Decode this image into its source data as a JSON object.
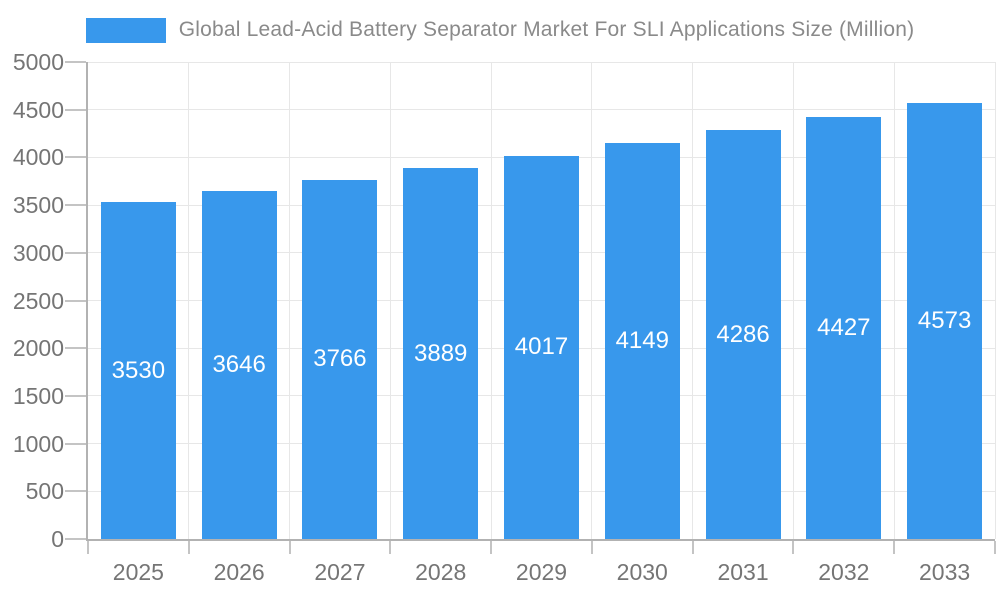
{
  "chart_data": {
    "type": "bar",
    "title": "Global Lead-Acid Battery Separator Market For SLI Applications Size (Million)",
    "categories": [
      "2025",
      "2026",
      "2027",
      "2028",
      "2029",
      "2030",
      "2031",
      "2032",
      "2033"
    ],
    "values": [
      3530,
      3646,
      3766,
      3889,
      4017,
      4149,
      4286,
      4427,
      4573
    ],
    "series_name": "Global Lead-Acid Battery Separator Market For SLI Applications Size (Million)",
    "xlabel": "",
    "ylabel": "",
    "ylim": [
      0,
      5000
    ],
    "yticks": [
      0,
      500,
      1000,
      1500,
      2000,
      2500,
      3000,
      3500,
      4000,
      4500,
      5000
    ],
    "grid": true,
    "legend_position": "top",
    "bar_labels_shown": true,
    "colors": {
      "bar": "#3898ec",
      "bar_label_text": "#ffffff",
      "title_text": "#8a8a8a",
      "axis_text": "#757575",
      "gridline": "#e7e7e7",
      "axis_line": "#b2b2b2",
      "background": "#ffffff"
    }
  }
}
